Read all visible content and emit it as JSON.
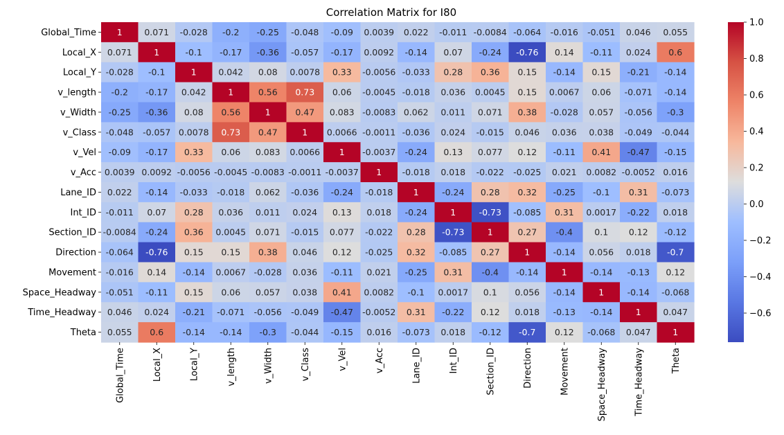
{
  "chart_data": {
    "type": "heatmap",
    "title": "Correlation Matrix for I80",
    "labels": [
      "Global_Time",
      "Local_X",
      "Local_Y",
      "v_length",
      "v_Width",
      "v_Class",
      "v_Vel",
      "v_Acc",
      "Lane_ID",
      "Int_ID",
      "Section_ID",
      "Direction",
      "Movement",
      "Space_Headway",
      "Time_Headway",
      "Theta"
    ],
    "matrix": [
      [
        "1",
        "0.071",
        "-0.028",
        "-0.2",
        "-0.25",
        "-0.048",
        "-0.09",
        "0.0039",
        "0.022",
        "-0.011",
        "-0.0084",
        "-0.064",
        "-0.016",
        "-0.051",
        "0.046",
        "0.055"
      ],
      [
        "0.071",
        "1",
        "-0.1",
        "-0.17",
        "-0.36",
        "-0.057",
        "-0.17",
        "0.0092",
        "-0.14",
        "0.07",
        "-0.24",
        "-0.76",
        "0.14",
        "-0.11",
        "0.024",
        "0.6"
      ],
      [
        "-0.028",
        "-0.1",
        "1",
        "0.042",
        "0.08",
        "0.0078",
        "0.33",
        "-0.0056",
        "-0.033",
        "0.28",
        "0.36",
        "0.15",
        "-0.14",
        "0.15",
        "-0.21",
        "-0.14"
      ],
      [
        "-0.2",
        "-0.17",
        "0.042",
        "1",
        "0.56",
        "0.73",
        "0.06",
        "-0.0045",
        "-0.018",
        "0.036",
        "0.0045",
        "0.15",
        "0.0067",
        "0.06",
        "-0.071",
        "-0.14"
      ],
      [
        "-0.25",
        "-0.36",
        "0.08",
        "0.56",
        "1",
        "0.47",
        "0.083",
        "-0.0083",
        "0.062",
        "0.011",
        "0.071",
        "0.38",
        "-0.028",
        "0.057",
        "-0.056",
        "-0.3"
      ],
      [
        "-0.048",
        "-0.057",
        "0.0078",
        "0.73",
        "0.47",
        "1",
        "0.0066",
        "-0.0011",
        "-0.036",
        "0.024",
        "-0.015",
        "0.046",
        "0.036",
        "0.038",
        "-0.049",
        "-0.044"
      ],
      [
        "-0.09",
        "-0.17",
        "0.33",
        "0.06",
        "0.083",
        "0.0066",
        "1",
        "-0.0037",
        "-0.24",
        "0.13",
        "0.077",
        "0.12",
        "-0.11",
        "0.41",
        "-0.47",
        "-0.15"
      ],
      [
        "0.0039",
        "0.0092",
        "-0.0056",
        "-0.0045",
        "-0.0083",
        "-0.0011",
        "-0.0037",
        "1",
        "-0.018",
        "0.018",
        "-0.022",
        "-0.025",
        "0.021",
        "0.0082",
        "-0.0052",
        "0.016"
      ],
      [
        "0.022",
        "-0.14",
        "-0.033",
        "-0.018",
        "0.062",
        "-0.036",
        "-0.24",
        "-0.018",
        "1",
        "-0.24",
        "0.28",
        "0.32",
        "-0.25",
        "-0.1",
        "0.31",
        "-0.073"
      ],
      [
        "-0.011",
        "0.07",
        "0.28",
        "0.036",
        "0.011",
        "0.024",
        "0.13",
        "0.018",
        "-0.24",
        "1",
        "-0.73",
        "-0.085",
        "0.31",
        "0.0017",
        "-0.22",
        "0.018"
      ],
      [
        "-0.0084",
        "-0.24",
        "0.36",
        "0.0045",
        "0.071",
        "-0.015",
        "0.077",
        "-0.022",
        "0.28",
        "-0.73",
        "1",
        "0.27",
        "-0.4",
        "0.1",
        "0.12",
        "-0.12"
      ],
      [
        "-0.064",
        "-0.76",
        "0.15",
        "0.15",
        "0.38",
        "0.046",
        "0.12",
        "-0.025",
        "0.32",
        "-0.085",
        "0.27",
        "1",
        "-0.14",
        "0.056",
        "0.018",
        "-0.7"
      ],
      [
        "-0.016",
        "0.14",
        "-0.14",
        "0.0067",
        "-0.028",
        "0.036",
        "-0.11",
        "0.021",
        "-0.25",
        "0.31",
        "-0.4",
        "-0.14",
        "1",
        "-0.14",
        "-0.13",
        "0.12"
      ],
      [
        "-0.051",
        "-0.11",
        "0.15",
        "0.06",
        "0.057",
        "0.038",
        "0.41",
        "0.0082",
        "-0.1",
        "0.0017",
        "0.1",
        "0.056",
        "-0.14",
        "1",
        "-0.14",
        "-0.068"
      ],
      [
        "0.046",
        "0.024",
        "-0.21",
        "-0.071",
        "-0.056",
        "-0.049",
        "-0.47",
        "-0.0052",
        "0.31",
        "-0.22",
        "0.12",
        "0.018",
        "-0.13",
        "-0.14",
        "1",
        "0.047"
      ],
      [
        "0.055",
        "0.6",
        "-0.14",
        "-0.14",
        "-0.3",
        "-0.044",
        "-0.15",
        "0.016",
        "-0.073",
        "0.018",
        "-0.12",
        "-0.7",
        "0.12",
        "-0.068",
        "0.047",
        "1"
      ]
    ],
    "colorbar": {
      "colormap": "coolwarm",
      "vmin": -0.76,
      "vmax": 1.0,
      "ticks": [
        "1.0",
        "0.8",
        "0.6",
        "0.4",
        "0.2",
        "0.0",
        "−0.2",
        "−0.4",
        "−0.6"
      ]
    }
  }
}
